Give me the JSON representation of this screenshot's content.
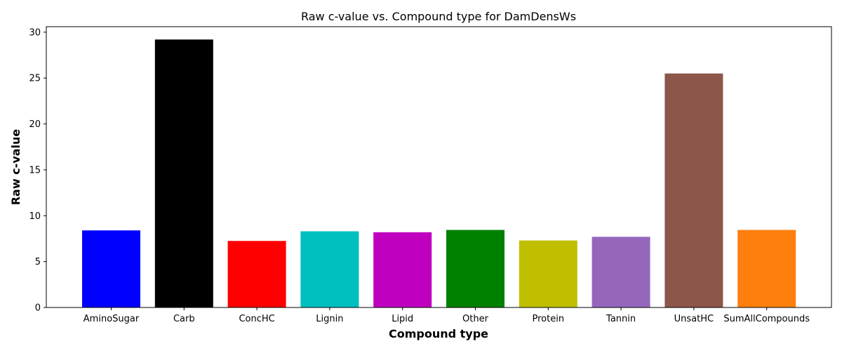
{
  "chart_data": {
    "type": "bar",
    "title": "Raw c-value vs. Compound type for DamDensWs",
    "xlabel": "Compound type",
    "ylabel": "Raw c-value",
    "ylim": [
      0,
      30.6
    ],
    "yticks": [
      0,
      5,
      10,
      15,
      20,
      25,
      30
    ],
    "grid": false,
    "legend": "none",
    "categories": [
      "AminoSugar",
      "Carb",
      "ConcHC",
      "Lignin",
      "Lipid",
      "Other",
      "Protein",
      "Tannin",
      "UnsatHC",
      "SumAllCompounds"
    ],
    "values": [
      8.4,
      29.2,
      7.25,
      8.3,
      8.2,
      8.45,
      7.3,
      7.7,
      25.5,
      8.45
    ],
    "colors": [
      "#0000ff",
      "#000000",
      "#ff0000",
      "#00bfbf",
      "#bf00bf",
      "#008000",
      "#bfbf00",
      "#9467bd",
      "#8c564b",
      "#ff7f0e"
    ]
  }
}
